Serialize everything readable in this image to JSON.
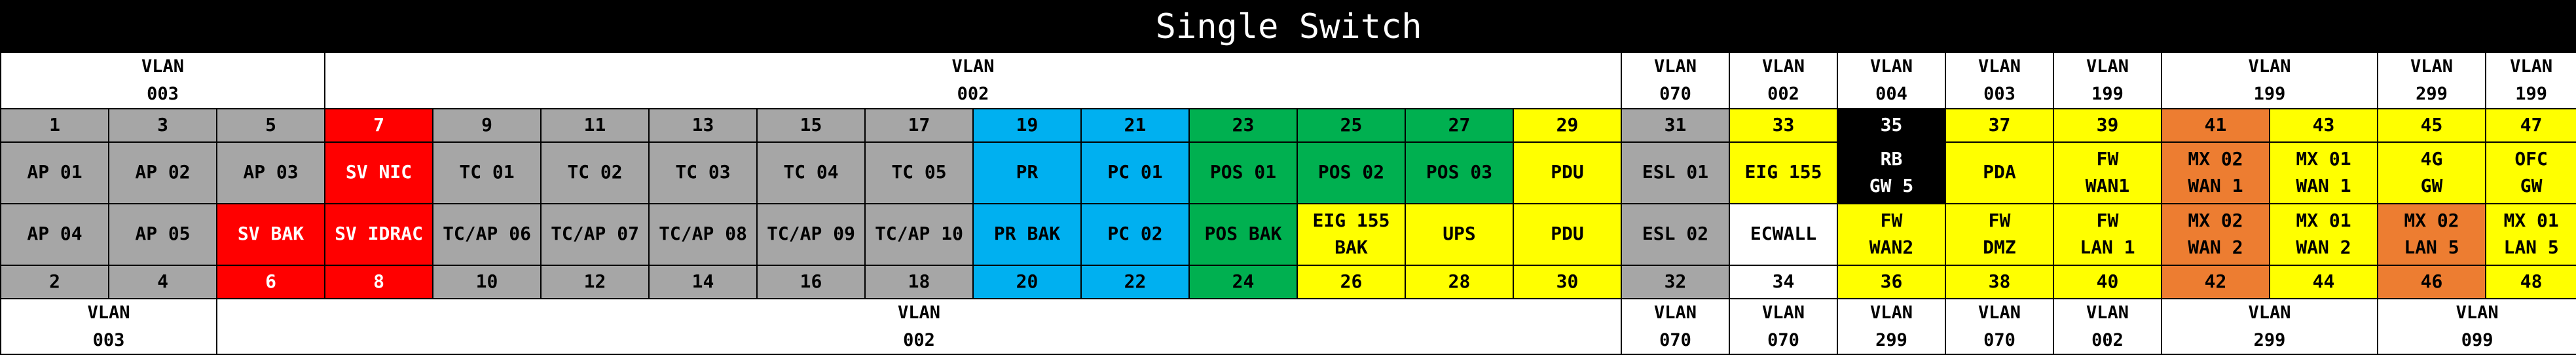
{
  "title": "Single Switch",
  "colors": {
    "gray": "#a6a6a6",
    "red": "#ff0000",
    "blue": "#00b0f0",
    "green": "#00b050",
    "yellow": "#ffff00",
    "orange": "#ed7d31",
    "black": "#000000",
    "white": "#ffffff"
  },
  "top_vlans": [
    {
      "label": "VLAN\n003",
      "span": 3
    },
    {
      "label": "VLAN\n002",
      "span": 12
    },
    {
      "label": "VLAN\n070",
      "span": 1
    },
    {
      "label": "VLAN\n002",
      "span": 1
    },
    {
      "label": "VLAN\n004",
      "span": 1
    },
    {
      "label": "VLAN\n003",
      "span": 1
    },
    {
      "label": "VLAN\n199",
      "span": 1
    },
    {
      "label": "VLAN\n199",
      "span": 2
    },
    {
      "label": "VLAN\n299",
      "span": 1
    },
    {
      "label": "VLAN\n199",
      "span": 1
    }
  ],
  "odd_ports": [
    {
      "num": "1",
      "name": "AP 01",
      "color": "gray"
    },
    {
      "num": "3",
      "name": "AP 02",
      "color": "gray"
    },
    {
      "num": "5",
      "name": "AP 03",
      "color": "gray"
    },
    {
      "num": "7",
      "name": "SV NIC",
      "color": "red"
    },
    {
      "num": "9",
      "name": "TC 01",
      "color": "gray"
    },
    {
      "num": "11",
      "name": "TC 02",
      "color": "gray"
    },
    {
      "num": "13",
      "name": "TC 03",
      "color": "gray"
    },
    {
      "num": "15",
      "name": "TC 04",
      "color": "gray"
    },
    {
      "num": "17",
      "name": "TC 05",
      "color": "gray"
    },
    {
      "num": "19",
      "name": "PR",
      "color": "blue"
    },
    {
      "num": "21",
      "name": "PC 01",
      "color": "blue"
    },
    {
      "num": "23",
      "name": "POS 01",
      "color": "green"
    },
    {
      "num": "25",
      "name": "POS 02",
      "color": "green"
    },
    {
      "num": "27",
      "name": "POS 03",
      "color": "green"
    },
    {
      "num": "29",
      "name": "PDU",
      "color": "yellow"
    },
    {
      "num": "31",
      "name": "ESL 01",
      "color": "gray"
    },
    {
      "num": "33",
      "name": "EIG 155",
      "color": "yellow"
    },
    {
      "num": "35",
      "name": "RB\nGW 5",
      "color": "black"
    },
    {
      "num": "37",
      "name": "PDA",
      "color": "yellow"
    },
    {
      "num": "39",
      "name": "FW\nWAN1",
      "color": "yellow"
    },
    {
      "num": "41",
      "name": "MX 02\nWAN 1",
      "color": "orange"
    },
    {
      "num": "43",
      "name": "MX 01\nWAN 1",
      "color": "yellow"
    },
    {
      "num": "45",
      "name": "4G\nGW",
      "color": "yellow"
    },
    {
      "num": "47",
      "name": "OFC\nGW",
      "color": "yellow"
    }
  ],
  "even_ports": [
    {
      "num": "2",
      "name": "AP 04",
      "color": "gray"
    },
    {
      "num": "4",
      "name": "AP 05",
      "color": "gray"
    },
    {
      "num": "6",
      "name": "SV BAK",
      "color": "red"
    },
    {
      "num": "8",
      "name": "SV IDRAC",
      "color": "red"
    },
    {
      "num": "10",
      "name": "TC/AP 06",
      "color": "gray"
    },
    {
      "num": "12",
      "name": "TC/AP 07",
      "color": "gray"
    },
    {
      "num": "14",
      "name": "TC/AP 08",
      "color": "gray"
    },
    {
      "num": "16",
      "name": "TC/AP 09",
      "color": "gray"
    },
    {
      "num": "18",
      "name": "TC/AP 10",
      "color": "gray"
    },
    {
      "num": "20",
      "name": "PR BAK",
      "color": "blue"
    },
    {
      "num": "22",
      "name": "PC 02",
      "color": "blue"
    },
    {
      "num": "24",
      "name": "POS BAK",
      "color": "green"
    },
    {
      "num": "26",
      "name": "EIG 155\nBAK",
      "color": "yellow"
    },
    {
      "num": "28",
      "name": "UPS",
      "color": "yellow"
    },
    {
      "num": "30",
      "name": "PDU",
      "color": "yellow"
    },
    {
      "num": "32",
      "name": "ESL 02",
      "color": "gray"
    },
    {
      "num": "34",
      "name": "ECWALL",
      "color": "white"
    },
    {
      "num": "36",
      "name": "FW\nWAN2",
      "color": "yellow"
    },
    {
      "num": "38",
      "name": "FW\nDMZ",
      "color": "yellow"
    },
    {
      "num": "40",
      "name": "FW\nLAN 1",
      "color": "yellow"
    },
    {
      "num": "42",
      "name": "MX 02\nWAN 2",
      "color": "orange"
    },
    {
      "num": "44",
      "name": "MX 01\nWAN 2",
      "color": "yellow"
    },
    {
      "num": "46",
      "name": "MX 02\nLAN 5",
      "color": "orange"
    },
    {
      "num": "48",
      "name": "MX 01\nLAN 5",
      "color": "yellow"
    }
  ],
  "bottom_vlans": [
    {
      "label": "VLAN\n003",
      "span": 2
    },
    {
      "label": "VLAN\n002",
      "span": 13
    },
    {
      "label": "VLAN\n070",
      "span": 1
    },
    {
      "label": "VLAN\n070",
      "span": 1
    },
    {
      "label": "VLAN\n299",
      "span": 1
    },
    {
      "label": "VLAN\n070",
      "span": 1
    },
    {
      "label": "VLAN\n002",
      "span": 1
    },
    {
      "label": "VLAN\n299",
      "span": 2
    },
    {
      "label": "VLAN\n099",
      "span": 2
    }
  ]
}
